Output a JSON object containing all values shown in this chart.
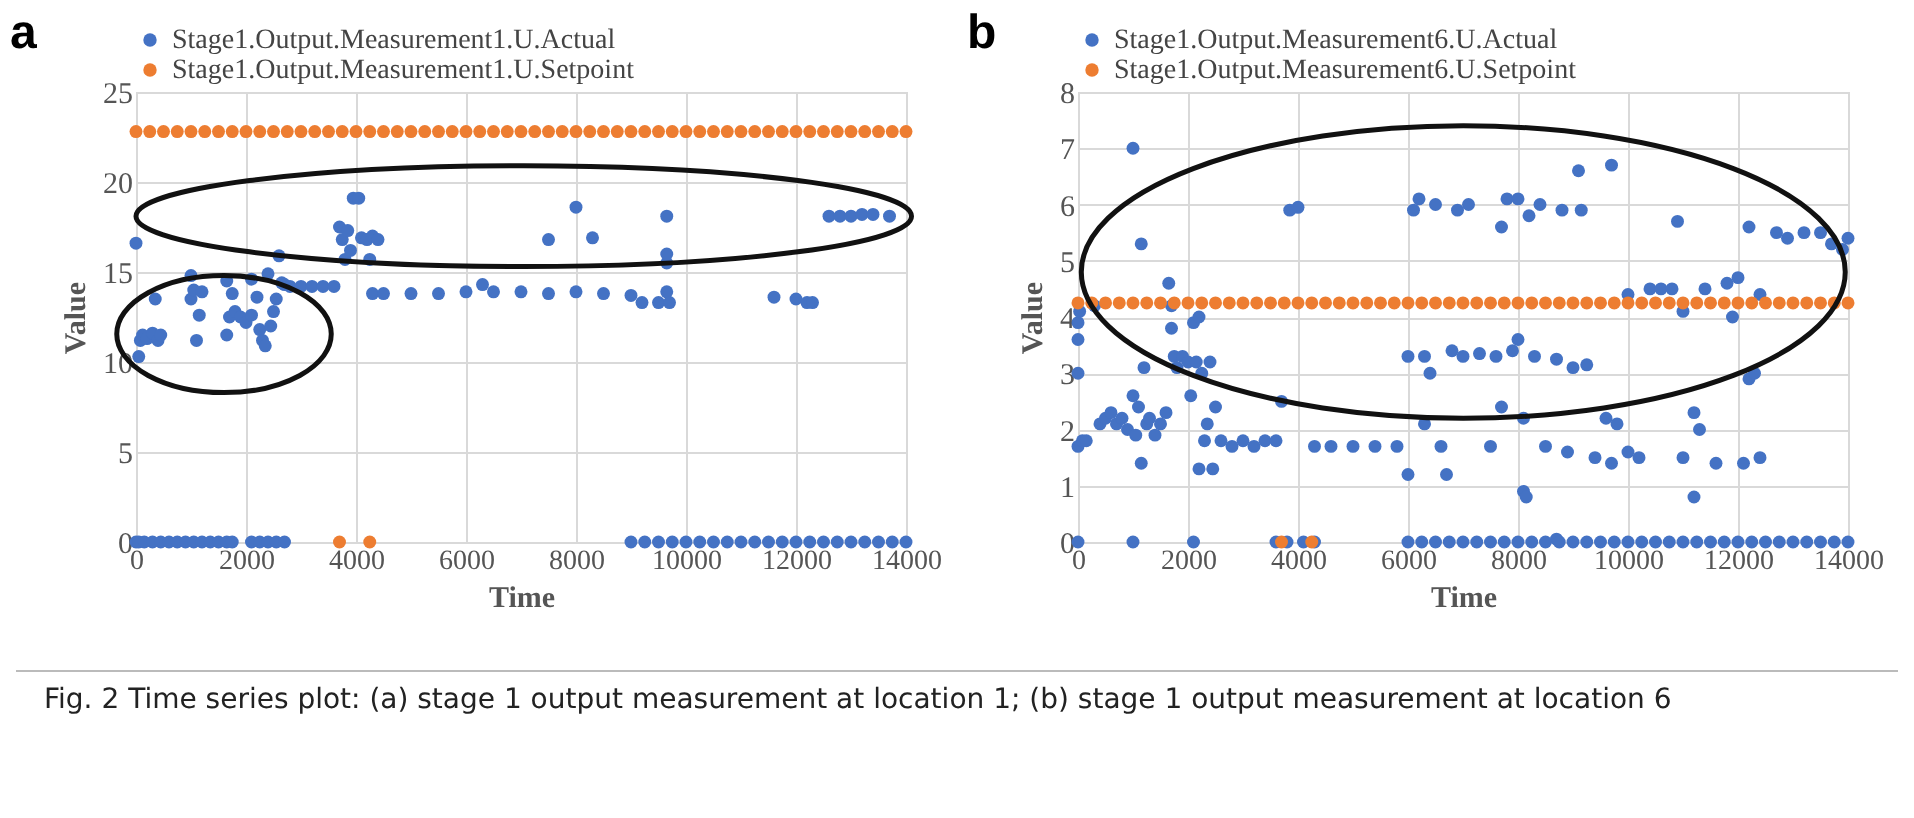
{
  "chart_data": [
    {
      "type": "scatter",
      "title": "a",
      "xlabel": "Time",
      "ylabel": "Value",
      "xlim": [
        0,
        14000
      ],
      "xticks": [
        0,
        2000,
        4000,
        6000,
        8000,
        10000,
        12000,
        14000
      ],
      "ylim": [
        0,
        25
      ],
      "yticks": [
        0,
        5,
        10,
        15,
        20,
        25
      ],
      "grid": true,
      "legend": "top",
      "marker": "circle",
      "annotations": [
        "Fig. 2  Time series plot: (a) stage 1 output measurement at location 1; (b) stage 1 output measurement at location 6"
      ],
      "series": [
        {
          "name": "Stage1.Output.Measurement1.U.Actual",
          "color": "#4472c4",
          "x": [
            0,
            50,
            80,
            120,
            200,
            300,
            350,
            400,
            450,
            1000,
            1000,
            1050,
            1100,
            1150,
            1200,
            1650,
            1650,
            1700,
            1750,
            1800,
            1900,
            2000,
            2100,
            2100,
            2200,
            2250,
            2300,
            2350,
            2400,
            2450,
            2500,
            2550,
            2600,
            2650,
            2700,
            2800,
            3000,
            3200,
            3400,
            3600,
            3700,
            3750,
            3800,
            3850,
            3900,
            3950,
            4050,
            4100,
            4200,
            4300,
            4400,
            4250,
            4300,
            4500,
            5000,
            5500,
            6000,
            6300,
            6500,
            7000,
            7500,
            7500,
            8000,
            8000,
            8300,
            8500,
            9000,
            9200,
            9500,
            9650,
            9650,
            9650,
            9650,
            9700,
            11600,
            12000,
            12200,
            12300,
            12600,
            12800,
            13000,
            13200,
            13400,
            13700,
            0,
            50,
            150,
            300,
            450,
            600,
            750,
            900,
            1050,
            1200,
            1350,
            1500,
            1650,
            1750,
            2100,
            2250,
            2400,
            2550,
            2700,
            9000,
            9250,
            9500,
            9750,
            10000,
            10250,
            10500,
            10750,
            11000,
            11250,
            11500,
            11750,
            12000,
            12250,
            12500,
            12750,
            13000,
            13250,
            13500,
            13750,
            14000
          ],
          "values": [
            16.6,
            10.3,
            11.2,
            11.5,
            11.3,
            11.6,
            13.5,
            11.2,
            11.5,
            13.5,
            14.8,
            14.0,
            11.2,
            12.6,
            13.9,
            11.5,
            14.5,
            12.5,
            13.8,
            12.8,
            12.5,
            12.2,
            12.6,
            14.6,
            13.6,
            11.8,
            11.2,
            10.9,
            14.9,
            12.0,
            12.8,
            13.5,
            15.9,
            14.4,
            14.3,
            14.2,
            14.2,
            14.2,
            14.2,
            14.2,
            17.5,
            16.8,
            15.7,
            17.3,
            16.2,
            19.1,
            19.1,
            16.9,
            16.8,
            17.0,
            16.8,
            15.7,
            13.8,
            13.8,
            13.8,
            13.8,
            13.9,
            14.3,
            13.9,
            13.9,
            13.8,
            16.8,
            18.6,
            13.9,
            16.9,
            13.8,
            13.7,
            13.3,
            13.3,
            13.9,
            15.5,
            16.0,
            18.1,
            13.3,
            13.6,
            13.5,
            13.3,
            13.3,
            18.1,
            18.1,
            18.1,
            18.2,
            18.2,
            18.1,
            0,
            0,
            0,
            0,
            0,
            0,
            0,
            0,
            0,
            0,
            0,
            0,
            0,
            0,
            0,
            0,
            0,
            0,
            0,
            0,
            0,
            0,
            0,
            0,
            0,
            0,
            0,
            0,
            0,
            0,
            0,
            0,
            0,
            0,
            0,
            0,
            0,
            0,
            0,
            0
          ]
        },
        {
          "name": "Stage1.Output.Measurement1.U.Setpoint",
          "color": "#ed7d31",
          "x": [
            0,
            250,
            500,
            750,
            1000,
            1250,
            1500,
            1750,
            2000,
            2250,
            2500,
            2750,
            3000,
            3250,
            3500,
            3750,
            4000,
            4250,
            4500,
            4750,
            5000,
            5250,
            5500,
            5750,
            6000,
            6250,
            6500,
            6750,
            7000,
            7250,
            7500,
            7750,
            8000,
            8250,
            8500,
            8750,
            9000,
            9250,
            9500,
            9750,
            10000,
            10250,
            10500,
            10750,
            11000,
            11250,
            11500,
            11750,
            12000,
            12250,
            12500,
            12750,
            13000,
            13250,
            13500,
            13750,
            14000,
            3700,
            4250
          ],
          "values": [
            22.8,
            22.8,
            22.8,
            22.8,
            22.8,
            22.8,
            22.8,
            22.8,
            22.8,
            22.8,
            22.8,
            22.8,
            22.8,
            22.8,
            22.8,
            22.8,
            22.8,
            22.8,
            22.8,
            22.8,
            22.8,
            22.8,
            22.8,
            22.8,
            22.8,
            22.8,
            22.8,
            22.8,
            22.8,
            22.8,
            22.8,
            22.8,
            22.8,
            22.8,
            22.8,
            22.8,
            22.8,
            22.8,
            22.8,
            22.8,
            22.8,
            22.8,
            22.8,
            22.8,
            22.8,
            22.8,
            22.8,
            22.8,
            22.8,
            22.8,
            22.8,
            22.8,
            22.8,
            22.8,
            22.8,
            22.8,
            22.8,
            0,
            0
          ]
        }
      ]
    },
    {
      "type": "scatter",
      "title": "b",
      "xlabel": "Time",
      "ylabel": "Value",
      "xlim": [
        0,
        14000
      ],
      "xticks": [
        0,
        2000,
        4000,
        6000,
        8000,
        10000,
        12000,
        14000
      ],
      "ylim": [
        0,
        8
      ],
      "yticks": [
        0,
        1,
        2,
        3,
        4,
        5,
        6,
        7,
        8
      ],
      "grid": true,
      "legend": "top",
      "marker": "circle",
      "series": [
        {
          "name": "Stage1.Output.Measurement6.U.Actual",
          "color": "#4472c4",
          "x": [
            0,
            0,
            0,
            0,
            30,
            80,
            150,
            300,
            400,
            500,
            600,
            700,
            800,
            900,
            1000,
            1000,
            1050,
            1100,
            1150,
            1150,
            1200,
            1250,
            1300,
            1400,
            1500,
            1600,
            1650,
            1700,
            1700,
            1750,
            1800,
            1900,
            2000,
            2050,
            2100,
            2150,
            2200,
            2200,
            2250,
            2300,
            2350,
            2400,
            2450,
            2500,
            2600,
            2800,
            3000,
            3200,
            3400,
            3600,
            3700,
            3850,
            4000,
            4300,
            4600,
            5000,
            5400,
            5800,
            6000,
            6000,
            6100,
            6200,
            6300,
            6300,
            6400,
            6500,
            6600,
            6700,
            6800,
            6900,
            7000,
            7100,
            7300,
            7500,
            7600,
            7700,
            7700,
            7800,
            7900,
            8000,
            8000,
            8100,
            8100,
            8150,
            8200,
            8300,
            8400,
            8500,
            8700,
            8800,
            8900,
            9000,
            9100,
            9150,
            9250,
            9400,
            9600,
            9700,
            9700,
            9800,
            10000,
            10000,
            10200,
            10400,
            10600,
            10800,
            10900,
            11000,
            11000,
            11200,
            11200,
            11300,
            11400,
            11600,
            11800,
            11900,
            12000,
            12100,
            12200,
            12200,
            12300,
            12400,
            12400,
            12700,
            12900,
            13200,
            13500,
            13700,
            13900,
            14000,
            0,
            1000,
            2100,
            3600,
            3800,
            4100,
            4300,
            8700,
            6000,
            6250,
            6500,
            6750,
            7000,
            7250,
            7500,
            7750,
            8000,
            8250,
            8500,
            8750,
            9000,
            9250,
            9500,
            9750,
            10000,
            10250,
            10500,
            10750,
            11000,
            11250,
            11500,
            11750,
            12000,
            12250,
            12500,
            12750,
            13000,
            13250,
            13500,
            13750,
            14000
          ],
          "values": [
            1.7,
            3.0,
            3.6,
            3.9,
            4.1,
            1.8,
            1.8,
            4.2,
            2.1,
            2.2,
            2.3,
            2.1,
            2.2,
            2.0,
            2.6,
            7.0,
            1.9,
            2.4,
            5.3,
            1.4,
            3.1,
            2.1,
            2.2,
            1.9,
            2.1,
            2.3,
            4.6,
            3.8,
            4.2,
            3.3,
            3.1,
            3.3,
            3.2,
            2.6,
            3.9,
            3.2,
            4.0,
            1.3,
            3.0,
            1.8,
            2.1,
            3.2,
            1.3,
            2.4,
            1.8,
            1.7,
            1.8,
            1.7,
            1.8,
            1.8,
            2.5,
            5.9,
            5.95,
            1.7,
            1.7,
            1.7,
            1.7,
            1.7,
            1.2,
            3.3,
            5.9,
            6.1,
            3.3,
            2.1,
            3.0,
            6.0,
            1.7,
            1.2,
            3.4,
            5.9,
            3.3,
            6.0,
            3.35,
            1.7,
            3.3,
            5.6,
            2.4,
            6.1,
            3.4,
            3.6,
            6.1,
            2.2,
            0.9,
            0.8,
            5.8,
            3.3,
            6.0,
            1.7,
            3.25,
            5.9,
            1.6,
            3.1,
            6.6,
            5.9,
            3.15,
            1.5,
            2.2,
            6.7,
            1.4,
            2.1,
            4.4,
            1.6,
            1.5,
            4.5,
            4.5,
            4.5,
            5.7,
            4.1,
            1.5,
            2.3,
            0.8,
            2.0,
            4.5,
            1.4,
            4.6,
            4.0,
            4.7,
            1.4,
            5.6,
            2.9,
            3.0,
            4.4,
            1.5,
            5.5,
            5.4,
            5.5,
            5.5,
            5.3,
            5.2,
            5.4,
            0,
            0,
            0,
            0,
            0,
            0,
            0,
            0.05,
            0,
            0,
            0,
            0,
            0,
            0,
            0,
            0,
            0,
            0,
            0,
            0,
            0,
            0,
            0,
            0,
            0,
            0,
            0,
            0,
            0,
            0,
            0,
            0,
            0,
            0,
            0,
            0,
            0,
            0,
            0,
            0,
            0
          ]
        },
        {
          "name": "Stage1.Output.Measurement6.U.Setpoint",
          "color": "#ed7d31",
          "x": [
            0,
            250,
            500,
            750,
            1000,
            1250,
            1500,
            1750,
            2000,
            2250,
            2500,
            2750,
            3000,
            3250,
            3500,
            3750,
            4000,
            4250,
            4500,
            4750,
            5000,
            5250,
            5500,
            5750,
            6000,
            6250,
            6500,
            6750,
            7000,
            7250,
            7500,
            7750,
            8000,
            8250,
            8500,
            8750,
            9000,
            9250,
            9500,
            9750,
            10000,
            10250,
            10500,
            10750,
            11000,
            11250,
            11500,
            11750,
            12000,
            12250,
            12500,
            12750,
            13000,
            13250,
            13500,
            13750,
            14000,
            3700,
            4250
          ],
          "values": [
            4.25,
            4.25,
            4.25,
            4.25,
            4.25,
            4.25,
            4.25,
            4.25,
            4.25,
            4.25,
            4.25,
            4.25,
            4.25,
            4.25,
            4.25,
            4.25,
            4.25,
            4.25,
            4.25,
            4.25,
            4.25,
            4.25,
            4.25,
            4.25,
            4.25,
            4.25,
            4.25,
            4.25,
            4.25,
            4.25,
            4.25,
            4.25,
            4.25,
            4.25,
            4.25,
            4.25,
            4.25,
            4.25,
            4.25,
            4.25,
            4.25,
            4.25,
            4.25,
            4.25,
            4.25,
            4.25,
            4.25,
            4.25,
            4.25,
            4.25,
            4.25,
            4.25,
            4.25,
            4.25,
            4.25,
            4.25,
            4.25,
            0,
            0
          ]
        }
      ]
    }
  ]
}
